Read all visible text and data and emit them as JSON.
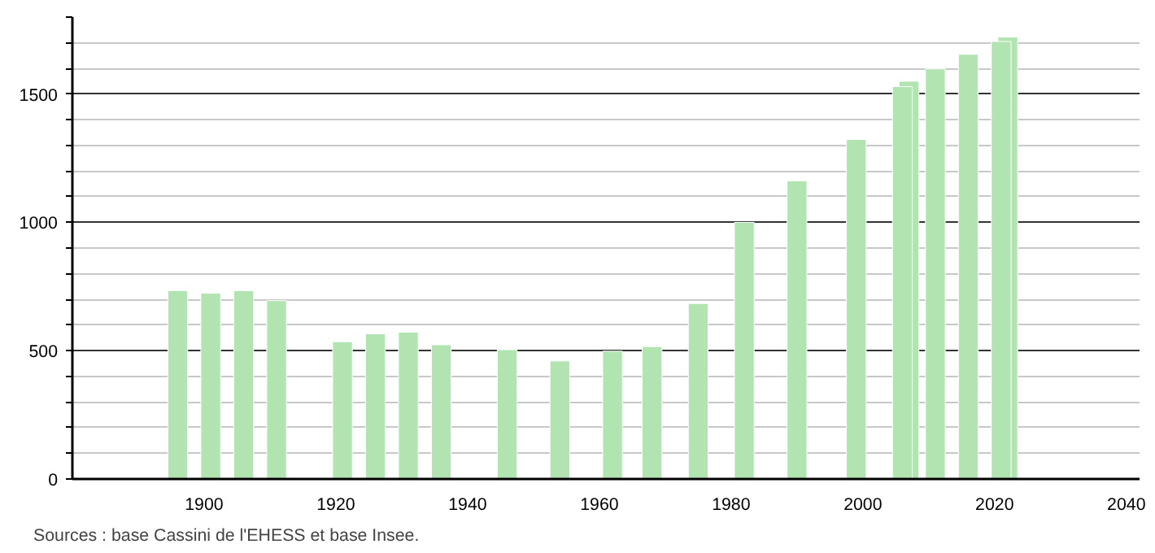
{
  "chart_data": {
    "type": "bar",
    "x": [
      1896,
      1901,
      1906,
      1911,
      1921,
      1926,
      1931,
      1936,
      1946,
      1954,
      1962,
      1968,
      1975,
      1982,
      1990,
      1999,
      2006,
      2007,
      2011,
      2016,
      2021,
      2022
    ],
    "values": [
      734,
      724,
      734,
      695,
      535,
      566,
      572,
      523,
      504,
      460,
      498,
      516,
      684,
      1000,
      1162,
      1323,
      1529,
      1550,
      1598,
      1655,
      1705,
      1722
    ],
    "color": "#b2e4b2",
    "xlim": [
      1880,
      2042
    ],
    "xticks": [
      1900,
      1920,
      1940,
      1960,
      1980,
      2000,
      2020,
      2040
    ],
    "ylim": [
      0,
      1800
    ],
    "yticks": [
      0,
      {
        "value": 100,
        "label": null
      },
      {
        "value": 200,
        "label": null
      },
      {
        "value": 300,
        "label": null
      },
      {
        "value": 400,
        "label": null
      },
      500,
      {
        "value": 600,
        "label": null
      },
      {
        "value": 700,
        "label": null
      },
      {
        "value": 800,
        "label": null
      },
      {
        "value": 900,
        "label": null
      },
      1000,
      {
        "value": 1100,
        "label": null
      },
      {
        "value": 1200,
        "label": null
      },
      {
        "value": 1300,
        "label": null
      },
      {
        "value": 1400,
        "label": null
      },
      1500,
      {
        "value": 1600,
        "label": null
      },
      {
        "value": 1700,
        "label": null
      },
      {
        "value": 1800,
        "label": null
      }
    ],
    "grid": "y",
    "annotations": [
      "Sources : base Cassini de l'EHESS et base Insee."
    ]
  }
}
